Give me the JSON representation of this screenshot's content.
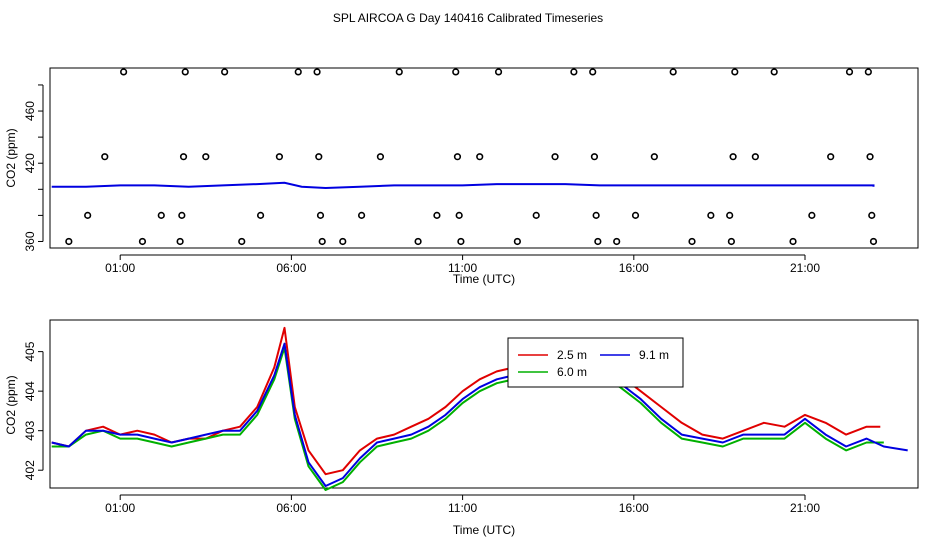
{
  "title": "SPL AIRCOA G  Day 140416  Calibrated Timeseries",
  "colors": {
    "c1": "#e00000",
    "c2": "#00b000",
    "c3": "#0000e0",
    "axis": "#000000"
  },
  "chart_data": [
    {
      "type": "scatter",
      "xlabel": "Time (UTC)",
      "ylabel": "CO2 (ppm)",
      "x_unit": "hours UTC",
      "xlim": [
        -1.05,
        24.3
      ],
      "ylim": [
        355,
        493
      ],
      "x_ticks": [
        1,
        6,
        11,
        16,
        21
      ],
      "x_tick_labels": [
        "01:00",
        "06:00",
        "11:00",
        "16:00",
        "21:00"
      ],
      "y_ticks": [
        360,
        420,
        460
      ],
      "y_tick_labels": [
        "360",
        "420",
        "460"
      ],
      "y_ticks_unlabeled": [
        380,
        400,
        440,
        480
      ],
      "points": [
        [
          -0.5,
          360
        ],
        [
          0.05,
          380
        ],
        [
          0.55,
          425
        ],
        [
          1.1,
          490
        ],
        [
          1.65,
          360
        ],
        [
          2.2,
          380
        ],
        [
          2.75,
          360
        ],
        [
          2.8,
          380
        ],
        [
          2.85,
          425
        ],
        [
          2.9,
          490
        ],
        [
          3.5,
          425
        ],
        [
          4.05,
          490
        ],
        [
          4.55,
          360
        ],
        [
          5.1,
          380
        ],
        [
          5.65,
          425
        ],
        [
          6.2,
          490
        ],
        [
          6.75,
          490
        ],
        [
          6.8,
          425
        ],
        [
          6.85,
          380
        ],
        [
          6.9,
          360
        ],
        [
          7.5,
          360
        ],
        [
          8.05,
          380
        ],
        [
          8.6,
          425
        ],
        [
          9.15,
          490
        ],
        [
          9.7,
          360
        ],
        [
          10.25,
          380
        ],
        [
          10.8,
          490
        ],
        [
          10.85,
          425
        ],
        [
          10.9,
          380
        ],
        [
          10.95,
          360
        ],
        [
          11.5,
          425
        ],
        [
          12.05,
          490
        ],
        [
          12.6,
          360
        ],
        [
          13.15,
          380
        ],
        [
          13.7,
          425
        ],
        [
          14.25,
          490
        ],
        [
          14.8,
          490
        ],
        [
          14.85,
          425
        ],
        [
          14.9,
          380
        ],
        [
          14.95,
          360
        ],
        [
          15.5,
          360
        ],
        [
          16.05,
          380
        ],
        [
          16.6,
          425
        ],
        [
          17.15,
          490
        ],
        [
          17.7,
          360
        ],
        [
          18.25,
          380
        ],
        [
          18.8,
          380
        ],
        [
          18.85,
          360
        ],
        [
          18.9,
          425
        ],
        [
          18.95,
          490
        ],
        [
          19.55,
          425
        ],
        [
          20.1,
          490
        ],
        [
          20.65,
          360
        ],
        [
          21.2,
          380
        ],
        [
          21.75,
          425
        ],
        [
          22.3,
          490
        ],
        [
          22.85,
          490
        ],
        [
          22.9,
          425
        ],
        [
          22.95,
          380
        ],
        [
          23.0,
          360
        ]
      ],
      "series": [
        {
          "color": "c3",
          "points": [
            [
              -1,
              402
            ],
            [
              0,
              402
            ],
            [
              1,
              403
            ],
            [
              2,
              403
            ],
            [
              3,
              402
            ],
            [
              4,
              403
            ],
            [
              5,
              404
            ],
            [
              5.8,
              405
            ],
            [
              6.3,
              402
            ],
            [
              7,
              401
            ],
            [
              8,
              402
            ],
            [
              9,
              403
            ],
            [
              10,
              403
            ],
            [
              11,
              403
            ],
            [
              12,
              404
            ],
            [
              13,
              404
            ],
            [
              14,
              404
            ],
            [
              15,
              403
            ],
            [
              16,
              403
            ],
            [
              17,
              403
            ],
            [
              18,
              403
            ],
            [
              19,
              403
            ],
            [
              20,
              403
            ],
            [
              21,
              403
            ],
            [
              22,
              403
            ],
            [
              23,
              403
            ],
            [
              23,
              402
            ]
          ]
        }
      ]
    },
    {
      "type": "line",
      "xlabel": "Time (UTC)",
      "ylabel": "CO2 (ppm)",
      "x_unit": "hours UTC",
      "xlim": [
        -1.05,
        24.3
      ],
      "ylim": [
        401.55,
        405.8
      ],
      "x_ticks": [
        1,
        6,
        11,
        16,
        21
      ],
      "x_tick_labels": [
        "01:00",
        "06:00",
        "11:00",
        "16:00",
        "21:00"
      ],
      "y_ticks": [
        402,
        403,
        404,
        405
      ],
      "y_tick_labels": [
        "402",
        "403",
        "404",
        "405"
      ],
      "legend": {
        "position": "upper center",
        "entries": [
          {
            "label": "2.5 m",
            "color": "c1"
          },
          {
            "label": "9.1 m",
            "color": "c3"
          },
          {
            "label": "6.0 m",
            "color": "c2"
          }
        ]
      },
      "series": [
        {
          "name": "2.5 m",
          "color": "c1",
          "points": [
            [
              -1,
              402.7
            ],
            [
              -0.5,
              402.6
            ],
            [
              0,
              403.0
            ],
            [
              0.5,
              403.1
            ],
            [
              1,
              402.9
            ],
            [
              1.5,
              403.0
            ],
            [
              2,
              402.9
            ],
            [
              2.5,
              402.7
            ],
            [
              3,
              402.8
            ],
            [
              3.5,
              402.8
            ],
            [
              4,
              403.0
            ],
            [
              4.5,
              403.1
            ],
            [
              5,
              403.6
            ],
            [
              5.5,
              404.6
            ],
            [
              5.8,
              405.6
            ],
            [
              6.1,
              403.6
            ],
            [
              6.5,
              402.5
            ],
            [
              7,
              401.9
            ],
            [
              7.5,
              402.0
            ],
            [
              8,
              402.5
            ],
            [
              8.5,
              402.8
            ],
            [
              9,
              402.9
            ],
            [
              9.5,
              403.1
            ],
            [
              10,
              403.3
            ],
            [
              10.5,
              403.6
            ],
            [
              11,
              404.0
            ],
            [
              11.5,
              404.3
            ],
            [
              12,
              404.5
            ],
            [
              12.5,
              404.6
            ],
            [
              12.8,
              405.1
            ],
            [
              13.2,
              404.8
            ],
            [
              13.8,
              404.6
            ],
            [
              14.4,
              404.5
            ],
            [
              15,
              404.6
            ],
            [
              15.6,
              404.4
            ],
            [
              16.2,
              404.0
            ],
            [
              16.8,
              403.6
            ],
            [
              17.4,
              403.2
            ],
            [
              18,
              402.9
            ],
            [
              18.6,
              402.8
            ],
            [
              19.2,
              403.0
            ],
            [
              19.8,
              403.2
            ],
            [
              20.4,
              403.1
            ],
            [
              21,
              403.4
            ],
            [
              21.6,
              403.2
            ],
            [
              22.2,
              402.9
            ],
            [
              22.8,
              403.1
            ],
            [
              23.2,
              403.1
            ]
          ]
        },
        {
          "name": "9.1 m",
          "color": "c3",
          "points": [
            [
              -1,
              402.7
            ],
            [
              -0.5,
              402.6
            ],
            [
              0,
              403.0
            ],
            [
              0.5,
              403.0
            ],
            [
              1,
              402.9
            ],
            [
              1.5,
              402.9
            ],
            [
              2,
              402.8
            ],
            [
              2.5,
              402.7
            ],
            [
              3,
              402.8
            ],
            [
              3.5,
              402.9
            ],
            [
              4,
              403.0
            ],
            [
              4.5,
              403.0
            ],
            [
              5,
              403.5
            ],
            [
              5.5,
              404.4
            ],
            [
              5.8,
              405.2
            ],
            [
              6.1,
              403.4
            ],
            [
              6.5,
              402.2
            ],
            [
              7,
              401.6
            ],
            [
              7.5,
              401.8
            ],
            [
              8,
              402.3
            ],
            [
              8.5,
              402.7
            ],
            [
              9,
              402.8
            ],
            [
              9.5,
              402.9
            ],
            [
              10,
              403.1
            ],
            [
              10.5,
              403.4
            ],
            [
              11,
              403.8
            ],
            [
              11.5,
              404.1
            ],
            [
              12,
              404.3
            ],
            [
              12.5,
              404.4
            ],
            [
              12.8,
              404.9
            ],
            [
              13.2,
              404.7
            ],
            [
              13.8,
              404.5
            ],
            [
              14.4,
              404.4
            ],
            [
              15,
              404.5
            ],
            [
              15.6,
              404.2
            ],
            [
              16.2,
              403.8
            ],
            [
              16.8,
              403.3
            ],
            [
              17.4,
              402.9
            ],
            [
              18,
              402.8
            ],
            [
              18.6,
              402.7
            ],
            [
              19.2,
              402.9
            ],
            [
              19.8,
              402.9
            ],
            [
              20.4,
              402.9
            ],
            [
              21,
              403.3
            ],
            [
              21.6,
              402.9
            ],
            [
              22.2,
              402.6
            ],
            [
              22.8,
              402.8
            ],
            [
              23.3,
              402.6
            ],
            [
              24,
              402.5
            ]
          ]
        },
        {
          "name": "6.0 m",
          "color": "c2",
          "points": [
            [
              -1,
              402.6
            ],
            [
              -0.5,
              402.6
            ],
            [
              0,
              402.9
            ],
            [
              0.5,
              403.0
            ],
            [
              1,
              402.8
            ],
            [
              1.5,
              402.8
            ],
            [
              2,
              402.7
            ],
            [
              2.5,
              402.6
            ],
            [
              3,
              402.7
            ],
            [
              3.5,
              402.8
            ],
            [
              4,
              402.9
            ],
            [
              4.5,
              402.9
            ],
            [
              5,
              403.4
            ],
            [
              5.5,
              404.3
            ],
            [
              5.8,
              405.1
            ],
            [
              6.1,
              403.3
            ],
            [
              6.5,
              402.1
            ],
            [
              7,
              401.5
            ],
            [
              7.5,
              401.7
            ],
            [
              8,
              402.2
            ],
            [
              8.5,
              402.6
            ],
            [
              9,
              402.7
            ],
            [
              9.5,
              402.8
            ],
            [
              10,
              403.0
            ],
            [
              10.5,
              403.3
            ],
            [
              11,
              403.7
            ],
            [
              11.5,
              404.0
            ],
            [
              12,
              404.2
            ],
            [
              12.5,
              404.3
            ],
            [
              12.8,
              404.8
            ],
            [
              13.2,
              404.6
            ],
            [
              13.8,
              404.4
            ],
            [
              14.4,
              404.3
            ],
            [
              15,
              404.4
            ],
            [
              15.6,
              404.1
            ],
            [
              16.2,
              403.7
            ],
            [
              16.8,
              403.2
            ],
            [
              17.4,
              402.8
            ],
            [
              18,
              402.7
            ],
            [
              18.6,
              402.6
            ],
            [
              19.2,
              402.8
            ],
            [
              19.8,
              402.8
            ],
            [
              20.4,
              402.8
            ],
            [
              21,
              403.2
            ],
            [
              21.6,
              402.8
            ],
            [
              22.2,
              402.5
            ],
            [
              22.8,
              402.7
            ],
            [
              23.3,
              402.7
            ]
          ]
        }
      ]
    }
  ]
}
